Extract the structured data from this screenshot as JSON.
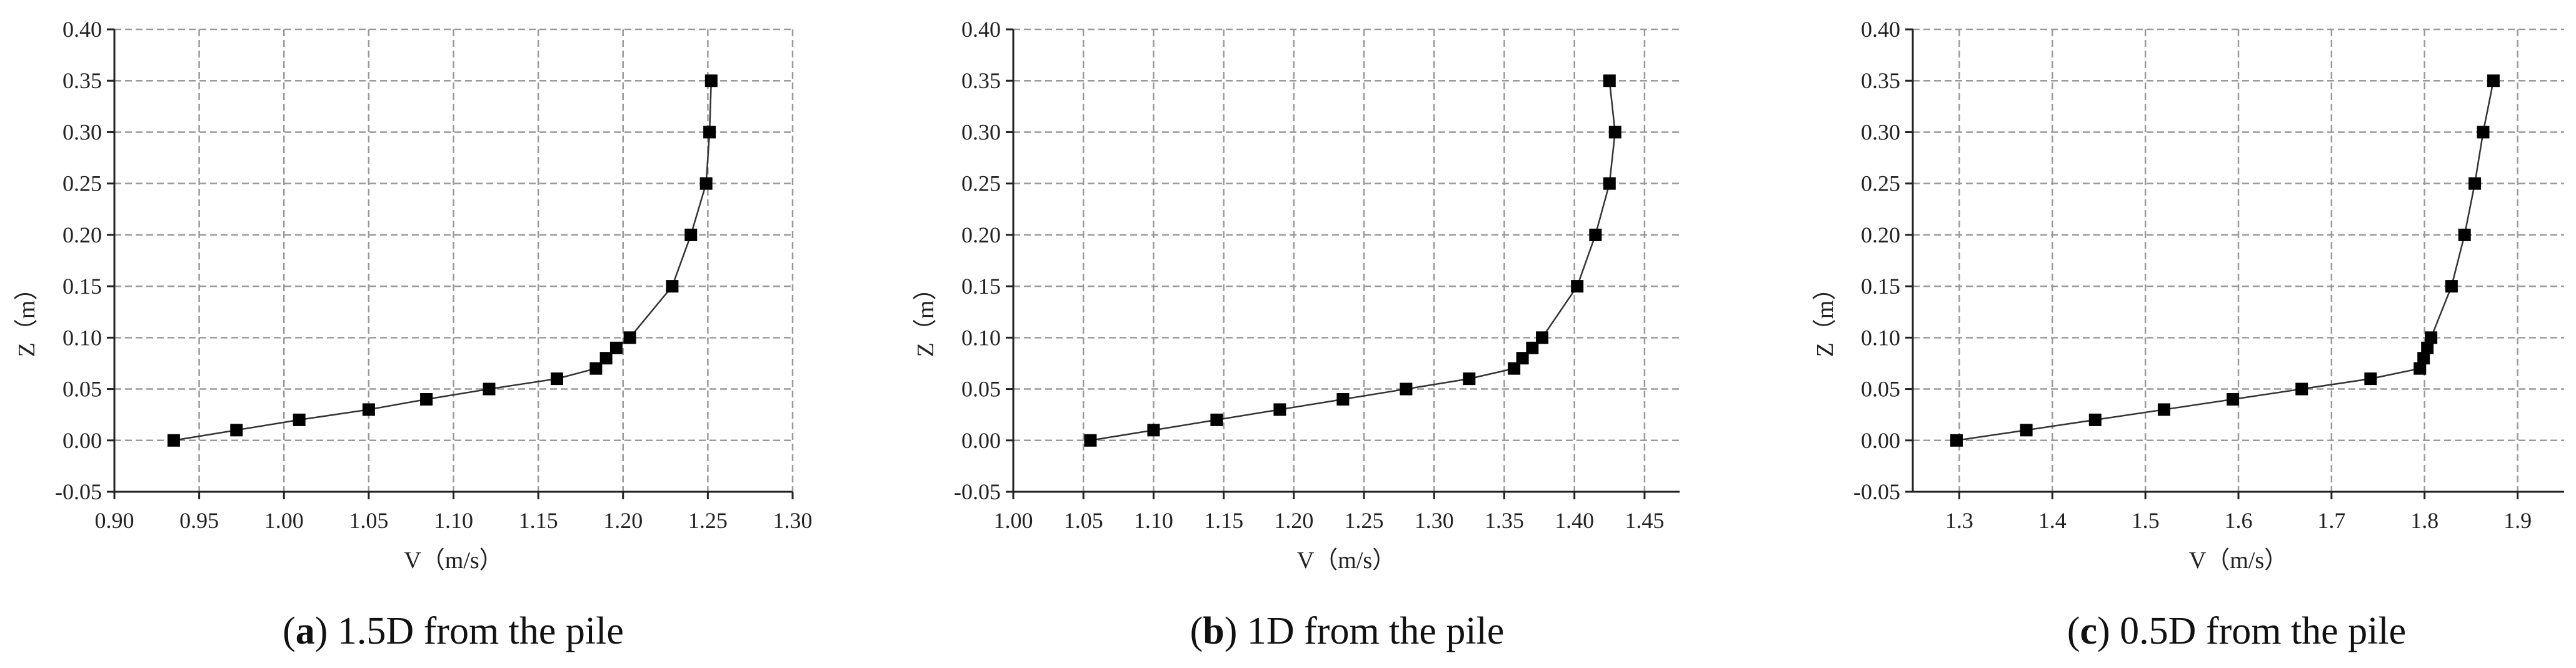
{
  "chart_data": [
    {
      "type": "line",
      "caption": {
        "open": "(",
        "letter": "a",
        "close": ")",
        "text": " 1.5D from the pile"
      },
      "xlabel": "V（m/s）",
      "ylabel": "Z（m）",
      "xlim": [
        0.9,
        1.3
      ],
      "ylim": [
        -0.05,
        0.4
      ],
      "xticks": [
        "0.90",
        "0.95",
        "1.00",
        "1.05",
        "1.10",
        "1.15",
        "1.20",
        "1.25",
        "1.30"
      ],
      "yticks": [
        "-0.05",
        "0.00",
        "0.05",
        "0.10",
        "0.15",
        "0.20",
        "0.25",
        "0.30",
        "0.35",
        "0.40"
      ],
      "grid": true,
      "series": [
        {
          "marker": "square",
          "color": "#000000",
          "x": [
            0.935,
            0.972,
            1.009,
            1.05,
            1.084,
            1.121,
            1.161,
            1.184,
            1.19,
            1.196,
            1.204,
            1.229,
            1.24,
            1.249,
            1.251,
            1.252
          ],
          "y": [
            0.0,
            0.01,
            0.02,
            0.03,
            0.04,
            0.05,
            0.06,
            0.07,
            0.08,
            0.09,
            0.1,
            0.15,
            0.2,
            0.25,
            0.3,
            0.35
          ]
        }
      ]
    },
    {
      "type": "line",
      "caption": {
        "open": "(",
        "letter": "b",
        "close": ")",
        "text": " 1D from the pile"
      },
      "xlabel": "V（m/s）",
      "ylabel": "Z（m）",
      "xlim": [
        1.0,
        1.475
      ],
      "ylim": [
        -0.05,
        0.4
      ],
      "xticks": [
        "1.00",
        "1.05",
        "1.10",
        "1.15",
        "1.20",
        "1.25",
        "1.30",
        "1.35",
        "1.40",
        "1.45"
      ],
      "yticks": [
        "-0.05",
        "0.00",
        "0.05",
        "0.10",
        "0.15",
        "0.20",
        "0.25",
        "0.30",
        "0.35",
        "0.40"
      ],
      "grid": true,
      "series": [
        {
          "marker": "square",
          "color": "#000000",
          "x": [
            1.055,
            1.1,
            1.145,
            1.19,
            1.235,
            1.28,
            1.325,
            1.357,
            1.363,
            1.37,
            1.377,
            1.402,
            1.415,
            1.425,
            1.429,
            1.425
          ],
          "y": [
            0.0,
            0.01,
            0.02,
            0.03,
            0.04,
            0.05,
            0.06,
            0.07,
            0.08,
            0.09,
            0.1,
            0.15,
            0.2,
            0.25,
            0.3,
            0.35
          ]
        }
      ]
    },
    {
      "type": "line",
      "caption": {
        "open": "(",
        "letter": "c",
        "close": ")",
        "text": " 0.5D from the pile"
      },
      "xlabel": "V（m/s）",
      "ylabel": "Z（m）",
      "xlim": [
        1.25,
        1.95
      ],
      "ylim": [
        -0.05,
        0.4
      ],
      "xticks": [
        "1.3",
        "1.4",
        "1.5",
        "1.6",
        "1.7",
        "1.8",
        "1.9"
      ],
      "xtick_values": [
        1.3,
        1.4,
        1.5,
        1.6,
        1.7,
        1.8,
        1.9
      ],
      "yticks": [
        "-0.05",
        "0.00",
        "0.05",
        "0.10",
        "0.15",
        "0.20",
        "0.25",
        "0.30",
        "0.35",
        "0.40"
      ],
      "grid": true,
      "series": [
        {
          "marker": "square",
          "color": "#000000",
          "x": [
            1.297,
            1.372,
            1.446,
            1.52,
            1.594,
            1.668,
            1.742,
            1.795,
            1.799,
            1.803,
            1.807,
            1.829,
            1.843,
            1.854,
            1.863,
            1.874
          ],
          "y": [
            0.0,
            0.01,
            0.02,
            0.03,
            0.04,
            0.05,
            0.06,
            0.07,
            0.08,
            0.09,
            0.1,
            0.15,
            0.2,
            0.25,
            0.3,
            0.35
          ]
        }
      ]
    }
  ]
}
